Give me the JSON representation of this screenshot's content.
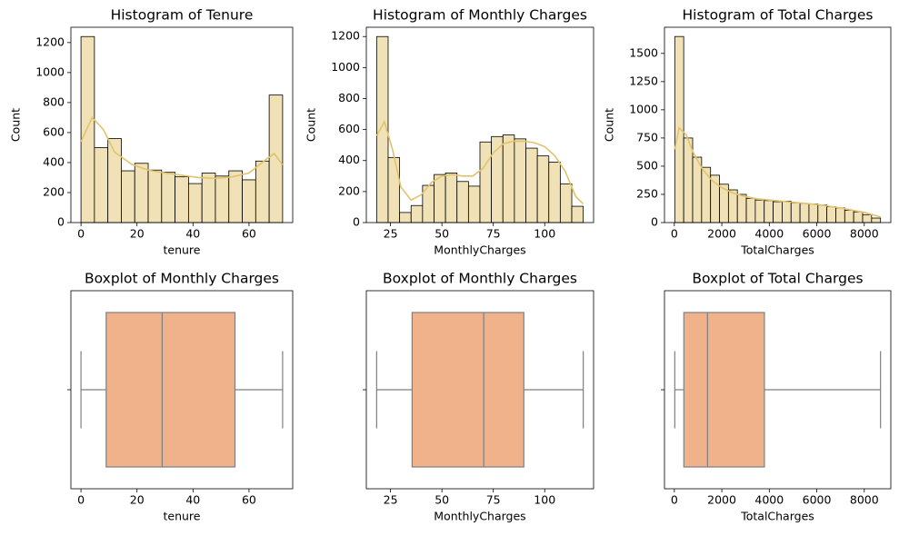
{
  "chart_data": [
    {
      "type": "histogram",
      "title": "Histogram of Tenure",
      "xlabel": "tenure",
      "ylabel": "Count",
      "bins": [
        0,
        4.8,
        9.6,
        14.4,
        19.2,
        24,
        28.8,
        33.6,
        38.4,
        43.2,
        48,
        52.8,
        57.6,
        62.4,
        67.2,
        72
      ],
      "values": [
        1240,
        500,
        560,
        345,
        395,
        350,
        335,
        305,
        260,
        330,
        310,
        345,
        285,
        410,
        850
      ],
      "color": "#f0e2b6",
      "edgecolor": "#000000",
      "kde": {
        "color": "#e2c36b",
        "x": [
          0,
          4,
          8,
          12,
          18,
          24,
          30,
          36,
          42,
          48,
          54,
          60,
          66,
          69,
          72
        ],
        "values": [
          540,
          700,
          620,
          470,
          390,
          350,
          330,
          315,
          300,
          295,
          305,
          330,
          420,
          460,
          385
        ]
      },
      "xlim": [
        -3.6,
        75.6
      ],
      "xticks": [
        0,
        20,
        40,
        60
      ],
      "ylim": [
        0,
        1302
      ],
      "yticks": [
        0,
        200,
        400,
        600,
        800,
        1000,
        1200
      ]
    },
    {
      "type": "histogram",
      "title": "Histogram of Monthly Charges",
      "xlabel": "MonthlyCharges",
      "ylabel": "Count",
      "bins": [
        18.25,
        23.83,
        29.42,
        35,
        40.58,
        46.17,
        51.75,
        57.33,
        62.92,
        68.5,
        74.08,
        79.67,
        85.25,
        90.83,
        96.42,
        102,
        107.58,
        113.17,
        118.75
      ],
      "values": [
        1200,
        420,
        65,
        110,
        240,
        310,
        320,
        265,
        235,
        520,
        555,
        565,
        540,
        480,
        430,
        390,
        250,
        105
      ],
      "color": "#f0e2b6",
      "edgecolor": "#000000",
      "kde": {
        "color": "#e2c36b",
        "x": [
          18.25,
          22,
          26,
          30,
          35,
          40,
          45,
          50,
          55,
          60,
          65,
          70,
          75,
          80,
          85,
          90,
          95,
          100,
          105,
          110,
          115,
          118.75
        ],
        "values": [
          560,
          650,
          470,
          230,
          145,
          180,
          260,
          300,
          310,
          300,
          300,
          350,
          450,
          510,
          525,
          525,
          515,
          490,
          430,
          330,
          170,
          120
        ]
      },
      "xlim": [
        13.225,
        123.775
      ],
      "xticks": [
        25,
        50,
        75,
        100
      ],
      "ylim": [
        0,
        1260
      ],
      "yticks": [
        0,
        200,
        400,
        600,
        800,
        1000,
        1200
      ]
    },
    {
      "type": "histogram",
      "title": "Histogram of Total Charges",
      "xlabel": "TotalCharges",
      "ylabel": "Count",
      "bins": [
        18.8,
        395.6,
        772.4,
        1149.2,
        1526,
        1902.8,
        2279.6,
        2656.4,
        3033.2,
        3410,
        3786.8,
        4163.6,
        4540.4,
        4917.2,
        5294,
        5670.8,
        6047.6,
        6424.4,
        6801.2,
        7178,
        7554.8,
        7931.6,
        8308.4,
        8685.2
      ],
      "values": [
        1650,
        750,
        580,
        490,
        420,
        340,
        290,
        250,
        215,
        200,
        195,
        185,
        190,
        175,
        170,
        165,
        155,
        140,
        130,
        110,
        95,
        70,
        40
      ],
      "color": "#f0e2b6",
      "edgecolor": "#000000",
      "kde": {
        "color": "#e2c36b",
        "x": [
          18.8,
          200,
          500,
          800,
          1200,
          1600,
          2000,
          2500,
          3000,
          3500,
          4000,
          5000,
          6000,
          7000,
          8000,
          8684.8
        ],
        "values": [
          650,
          840,
          780,
          620,
          470,
          370,
          310,
          260,
          230,
          210,
          200,
          180,
          160,
          130,
          90,
          50
        ]
      },
      "xlim": [
        -414.5,
        9118.1
      ],
      "xticks": [
        0,
        2000,
        4000,
        6000,
        8000
      ],
      "ylim": [
        0,
        1732
      ],
      "yticks": [
        0,
        250,
        500,
        750,
        1000,
        1250,
        1500
      ]
    },
    {
      "type": "box",
      "title": "Boxplot of Monthly Charges",
      "xlabel": "tenure",
      "min": 0,
      "q1": 9,
      "median": 29,
      "q3": 55,
      "max": 72,
      "color": "#efb28a",
      "linecolor": "#7f7f7f",
      "xlim": [
        -3.6,
        75.6
      ],
      "xticks": [
        0,
        20,
        40,
        60
      ]
    },
    {
      "type": "box",
      "title": "Boxplot of Monthly Charges",
      "xlabel": "MonthlyCharges",
      "min": 18.25,
      "q1": 35.5,
      "median": 70.35,
      "q3": 89.85,
      "max": 118.75,
      "color": "#efb28a",
      "linecolor": "#7f7f7f",
      "xlim": [
        13.225,
        123.775
      ],
      "xticks": [
        25,
        50,
        75,
        100
      ]
    },
    {
      "type": "box",
      "title": "Boxplot of Total Charges",
      "xlabel": "TotalCharges",
      "min": 18.8,
      "q1": 401.45,
      "median": 1397.5,
      "q3": 3794.7,
      "max": 8684.8,
      "color": "#efb28a",
      "linecolor": "#7f7f7f",
      "xlim": [
        -414.5,
        9118.1
      ],
      "xticks": [
        0,
        2000,
        4000,
        6000,
        8000
      ]
    }
  ]
}
